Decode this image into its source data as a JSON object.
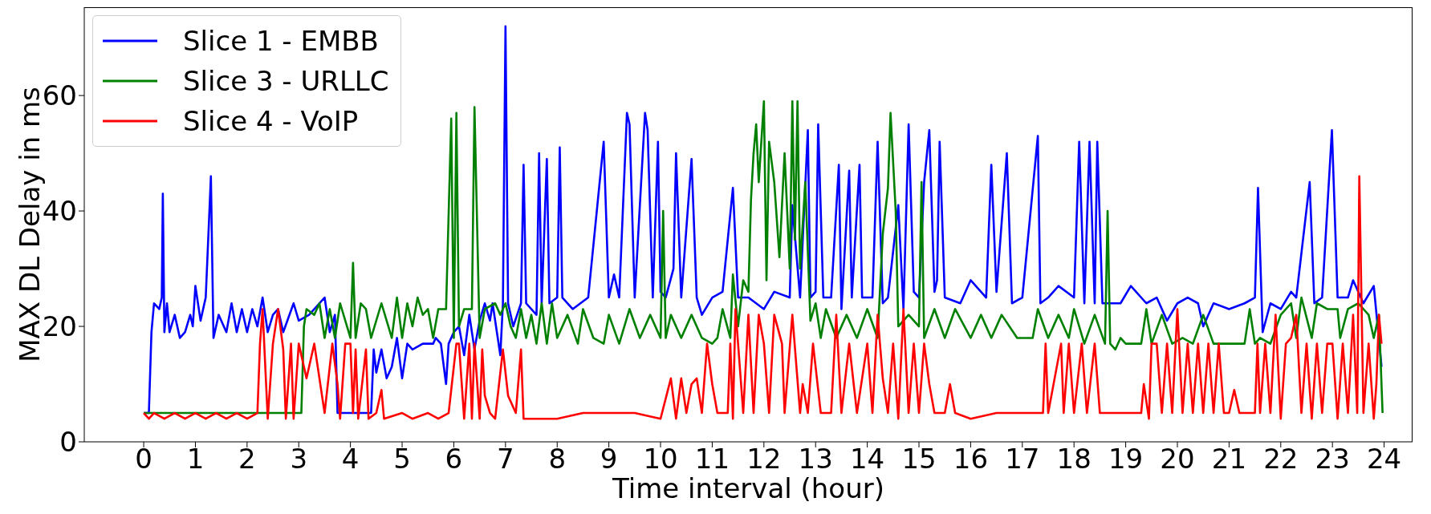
{
  "chart_data": {
    "type": "line",
    "xlabel": "Time interval (hour)",
    "ylabel": "MAX DL Delay in ms",
    "xlim": [
      -1.15,
      24.55
    ],
    "ylim": [
      0,
      75.3
    ],
    "xticks": [
      0,
      1,
      2,
      3,
      4,
      5,
      6,
      7,
      8,
      9,
      10,
      11,
      12,
      13,
      14,
      15,
      16,
      17,
      18,
      19,
      20,
      21,
      22,
      23,
      24
    ],
    "yticks": [
      0,
      20,
      40,
      60
    ],
    "legend": "top left",
    "marker": "none",
    "line_style": "solid",
    "series": [
      {
        "name": "Slice 1 - EMBB",
        "color": "#0000ff",
        "x": [
          0,
          0.1,
          0.15,
          0.2,
          0.3,
          0.35,
          0.37,
          0.4,
          0.45,
          0.5,
          0.6,
          0.7,
          0.8,
          0.9,
          0.95,
          1.0,
          1.1,
          1.2,
          1.3,
          1.35,
          1.45,
          1.6,
          1.7,
          1.8,
          1.9,
          2.0,
          2.1,
          2.2,
          2.3,
          2.4,
          2.5,
          2.6,
          2.7,
          2.9,
          3.0,
          3.2,
          3.4,
          3.5,
          3.6,
          3.7,
          3.75,
          4.0,
          4.2,
          4.4,
          4.45,
          4.5,
          4.6,
          4.7,
          4.8,
          4.9,
          5.0,
          5.1,
          5.2,
          5.4,
          5.6,
          5.65,
          5.75,
          5.85,
          5.9,
          6.0,
          6.1,
          6.2,
          6.3,
          6.4,
          6.5,
          6.6,
          6.7,
          6.75,
          6.9,
          6.95,
          7.0,
          7.05,
          7.15,
          7.3,
          7.35,
          7.4,
          7.6,
          7.65,
          7.7,
          7.8,
          7.85,
          8.0,
          8.05,
          8.1,
          8.3,
          8.6,
          8.9,
          9.0,
          9.1,
          9.2,
          9.35,
          9.4,
          9.5,
          9.7,
          9.75,
          9.85,
          9.95,
          10.0,
          10.1,
          10.25,
          10.3,
          10.4,
          10.6,
          10.7,
          10.8,
          11.0,
          11.2,
          11.4,
          11.5,
          11.7,
          12.0,
          12.2,
          12.5,
          12.55,
          12.7,
          12.85,
          12.9,
          13.0,
          13.05,
          13.15,
          13.3,
          13.45,
          13.5,
          13.65,
          13.7,
          13.85,
          13.9,
          14.1,
          14.2,
          14.3,
          14.4,
          14.6,
          14.7,
          14.8,
          14.9,
          15.0,
          15.1,
          15.2,
          15.3,
          15.35,
          15.4,
          15.5,
          15.8,
          16.0,
          16.3,
          16.4,
          16.5,
          16.7,
          16.8,
          17.0,
          17.3,
          17.35,
          17.5,
          17.7,
          18.0,
          18.1,
          18.2,
          18.3,
          18.4,
          18.45,
          18.55,
          18.9,
          19.1,
          19.4,
          19.6,
          19.8,
          20.0,
          20.2,
          20.4,
          20.5,
          20.7,
          21.0,
          21.3,
          21.5,
          21.56,
          21.65,
          21.8,
          22.0,
          22.2,
          22.3,
          22.56,
          22.65,
          22.8,
          22.99,
          23.1,
          23.3,
          23.4,
          23.6,
          23.8,
          23.95
        ],
        "values": [
          5,
          5,
          19,
          24,
          23,
          25,
          43,
          19,
          24,
          19,
          22,
          18,
          19,
          22,
          20,
          27,
          21,
          25,
          46,
          18,
          22,
          19,
          24,
          19,
          23,
          19,
          23,
          20,
          25,
          19,
          22,
          23,
          19,
          24,
          21,
          22,
          24,
          25,
          19,
          22,
          5,
          5,
          5,
          5,
          16,
          12,
          16,
          11,
          13,
          18,
          11,
          17,
          16,
          17,
          17,
          18,
          17,
          10,
          17,
          19,
          20,
          15,
          22,
          16,
          21,
          24,
          21,
          24,
          15,
          24,
          72,
          24,
          20,
          24,
          48,
          24,
          22,
          50,
          24,
          49,
          24,
          25,
          51,
          25,
          23,
          25,
          52,
          25,
          29,
          25,
          57,
          55,
          25,
          57,
          54,
          25,
          52,
          26,
          25,
          30,
          50,
          25,
          49,
          25,
          22,
          25,
          26,
          44,
          25,
          25,
          23,
          26,
          25,
          41,
          25,
          54,
          25,
          26,
          55,
          25,
          25,
          48,
          23,
          47,
          25,
          48,
          25,
          25,
          52,
          24,
          25,
          41,
          23,
          55,
          26,
          25,
          45,
          54,
          26,
          28,
          52,
          25,
          24,
          28,
          25,
          48,
          26,
          50,
          24,
          25,
          53,
          24,
          25,
          27,
          25,
          52,
          24,
          52,
          24,
          52,
          24,
          24,
          27,
          24,
          25,
          21,
          24,
          25,
          24,
          20,
          24,
          23,
          24,
          25,
          44,
          19,
          24,
          23,
          26,
          25,
          45,
          24,
          25,
          54,
          25,
          25,
          28,
          24,
          27,
          13
        ]
      },
      {
        "name": "Slice 3 - URLLC",
        "color": "#008000",
        "x": [
          0,
          3.05,
          3.1,
          3.15,
          3.3,
          3.4,
          3.5,
          3.6,
          3.7,
          3.8,
          4.0,
          4.05,
          4.1,
          4.2,
          4.3,
          4.4,
          4.6,
          4.8,
          4.9,
          5.0,
          5.1,
          5.2,
          5.3,
          5.4,
          5.5,
          5.6,
          5.7,
          5.85,
          5.95,
          6.0,
          6.05,
          6.1,
          6.2,
          6.35,
          6.4,
          6.5,
          6.6,
          6.8,
          6.9,
          7.0,
          7.1,
          7.2,
          7.3,
          7.4,
          7.5,
          7.6,
          7.7,
          7.8,
          7.9,
          8.0,
          8.2,
          8.4,
          8.5,
          8.7,
          8.9,
          9.0,
          9.2,
          9.4,
          9.6,
          9.8,
          10.0,
          10.05,
          10.1,
          10.2,
          10.4,
          10.6,
          10.8,
          11.0,
          11.1,
          11.2,
          11.35,
          11.4,
          11.5,
          11.6,
          11.7,
          11.75,
          11.8,
          11.85,
          11.9,
          12.0,
          12.05,
          12.1,
          12.2,
          12.3,
          12.4,
          12.5,
          12.55,
          12.6,
          12.65,
          12.7,
          12.8,
          12.9,
          13.0,
          13.1,
          13.2,
          13.4,
          13.6,
          13.8,
          14.0,
          14.2,
          14.3,
          14.4,
          14.45,
          14.55,
          14.6,
          14.8,
          15.0,
          15.05,
          15.1,
          15.3,
          15.5,
          15.7,
          16.0,
          16.2,
          16.4,
          16.6,
          16.9,
          17.2,
          17.3,
          17.5,
          17.7,
          17.9,
          18.0,
          18.2,
          18.4,
          18.6,
          18.65,
          18.7,
          18.8,
          18.9,
          19.0,
          19.3,
          19.4,
          19.5,
          19.7,
          19.9,
          20.1,
          20.3,
          20.5,
          20.7,
          21.0,
          21.3,
          21.4,
          21.5,
          21.6,
          21.8,
          22.0,
          22.2,
          22.3,
          22.4,
          22.6,
          22.7,
          22.9,
          23.1,
          23.15,
          23.3,
          23.5,
          23.7,
          23.8,
          23.9,
          23.97
        ],
        "values": [
          5,
          5,
          20,
          23,
          22,
          24,
          18,
          23,
          18,
          24,
          18,
          31,
          18,
          24,
          23,
          18,
          24,
          18,
          25,
          18,
          24,
          20,
          25,
          22,
          23,
          18,
          23,
          23,
          56,
          18,
          57,
          20,
          23,
          23,
          58,
          18,
          23,
          24,
          22,
          24,
          20,
          18,
          23,
          18,
          22,
          17,
          24,
          17,
          24,
          18,
          22,
          17,
          23,
          18,
          17,
          22,
          17,
          23,
          18,
          22,
          18,
          40,
          18,
          22,
          18,
          22,
          18,
          17,
          18,
          23,
          18,
          29,
          20,
          28,
          26,
          42,
          50,
          55,
          45,
          59,
          28,
          52,
          45,
          32,
          50,
          30,
          59,
          35,
          59,
          30,
          45,
          21,
          24,
          18,
          23,
          18,
          22,
          18,
          23,
          18,
          36,
          44,
          57,
          40,
          20,
          22,
          20,
          45,
          18,
          23,
          18,
          23,
          18,
          22,
          18,
          22,
          18,
          18,
          23,
          18,
          22,
          18,
          23,
          17,
          22,
          17,
          40,
          17,
          16,
          18,
          17,
          17,
          23,
          17,
          22,
          17,
          18,
          17,
          22,
          17,
          17,
          17,
          23,
          17,
          18,
          17,
          22,
          24,
          18,
          25,
          18,
          24,
          23,
          23,
          18,
          23,
          24,
          22,
          18,
          22,
          5
        ]
      },
      {
        "name": "Slice 4 - VoIP",
        "color": "#ff0000",
        "x": [
          0,
          0.1,
          0.2,
          0.4,
          0.6,
          0.8,
          1.0,
          1.2,
          1.4,
          1.6,
          1.8,
          2.0,
          2.2,
          2.25,
          2.3,
          2.4,
          2.5,
          2.6,
          2.7,
          2.75,
          2.85,
          2.9,
          3.0,
          3.15,
          3.3,
          3.5,
          3.65,
          3.75,
          3.8,
          3.9,
          4.0,
          4.05,
          4.1,
          4.15,
          4.3,
          4.35,
          4.5,
          4.6,
          4.65,
          5.0,
          5.2,
          5.5,
          5.7,
          5.9,
          6.05,
          6.1,
          6.2,
          6.3,
          6.35,
          6.4,
          6.5,
          6.55,
          6.6,
          6.7,
          6.8,
          6.95,
          7.05,
          7.2,
          7.3,
          7.35,
          8.0,
          8.5,
          9.0,
          9.5,
          10.0,
          10.2,
          10.3,
          10.4,
          10.5,
          10.6,
          10.7,
          10.8,
          10.9,
          11.0,
          11.1,
          11.3,
          11.35,
          11.4,
          11.45,
          11.6,
          11.7,
          11.8,
          11.9,
          12.0,
          12.1,
          12.2,
          12.35,
          12.4,
          12.55,
          12.7,
          12.75,
          12.85,
          12.95,
          13.1,
          13.3,
          13.4,
          13.5,
          13.65,
          13.8,
          14.0,
          14.1,
          14.2,
          14.3,
          14.4,
          14.5,
          14.6,
          14.7,
          14.8,
          14.9,
          15.0,
          15.1,
          15.2,
          15.3,
          15.5,
          15.6,
          15.7,
          16.0,
          16.5,
          17.0,
          17.4,
          17.45,
          17.5,
          17.75,
          17.8,
          17.9,
          18.0,
          18.15,
          18.25,
          18.4,
          18.5,
          18.7,
          19.0,
          19.3,
          19.35,
          19.45,
          19.5,
          19.6,
          19.7,
          19.8,
          19.9,
          20.0,
          20.1,
          20.2,
          20.3,
          20.4,
          20.5,
          20.6,
          20.7,
          20.8,
          20.9,
          21.0,
          21.1,
          21.2,
          21.5,
          21.55,
          21.6,
          21.7,
          21.8,
          21.9,
          22.0,
          22.1,
          22.2,
          22.3,
          22.4,
          22.5,
          22.6,
          22.7,
          22.8,
          22.9,
          23.0,
          23.1,
          23.2,
          23.3,
          23.4,
          23.48,
          23.52,
          23.6,
          23.7,
          23.8,
          23.85,
          23.9,
          23.95
        ],
        "values": [
          5,
          4,
          5,
          4,
          5,
          4,
          5,
          4,
          5,
          4,
          5,
          4,
          5,
          17,
          23,
          4,
          17,
          23,
          16,
          4,
          17,
          4,
          17,
          11,
          17,
          5,
          17,
          10,
          4,
          17,
          17,
          5,
          16,
          4,
          16,
          4,
          5,
          9,
          4,
          5,
          4,
          5,
          4,
          5,
          17,
          17,
          4,
          17,
          4,
          17,
          4,
          16,
          8,
          5,
          4,
          16,
          8,
          5,
          16,
          4,
          4,
          5,
          5,
          5,
          4,
          11,
          4,
          11,
          5,
          10,
          11,
          5,
          17,
          10,
          5,
          5,
          17,
          4,
          23,
          5,
          22,
          5,
          22,
          17,
          5,
          22,
          17,
          5,
          22,
          5,
          10,
          5,
          17,
          5,
          5,
          22,
          5,
          17,
          5,
          17,
          5,
          22,
          11,
          5,
          17,
          4,
          23,
          5,
          17,
          5,
          17,
          10,
          5,
          5,
          10,
          5,
          4,
          5,
          5,
          5,
          17,
          5,
          17,
          5,
          17,
          5,
          17,
          5,
          17,
          5,
          5,
          5,
          5,
          10,
          4,
          17,
          17,
          5,
          17,
          5,
          23,
          5,
          17,
          5,
          17,
          5,
          17,
          5,
          17,
          5,
          5,
          9,
          5,
          5,
          17,
          5,
          17,
          5,
          22,
          4,
          17,
          18,
          22,
          5,
          17,
          4,
          17,
          5,
          17,
          17,
          4,
          17,
          5,
          22,
          5,
          46,
          5,
          17,
          4,
          10,
          22,
          17
        ]
      }
    ]
  }
}
